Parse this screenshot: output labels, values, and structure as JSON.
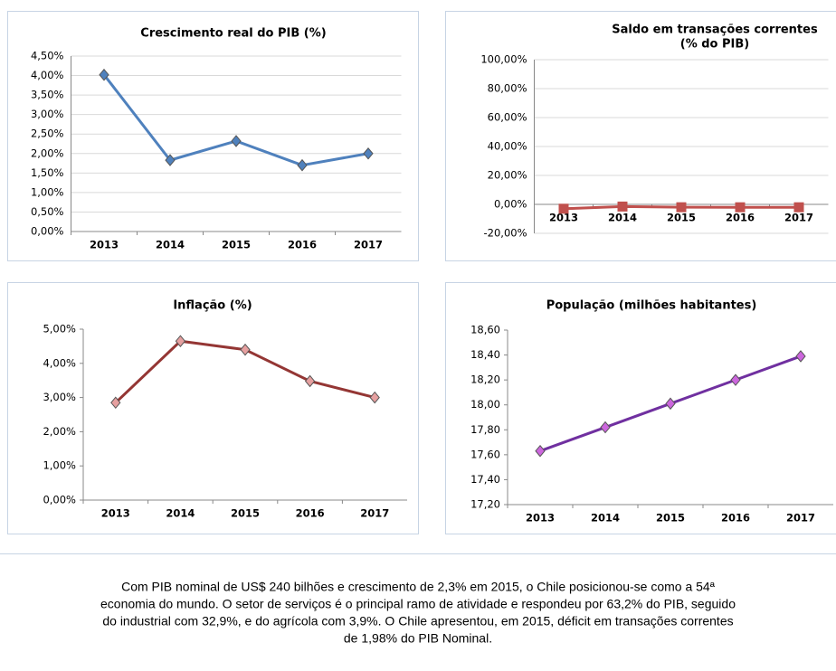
{
  "chart_data": [
    {
      "type": "line",
      "title": [
        "Crescimento real do PIB (%)"
      ],
      "categories": [
        "2013",
        "2014",
        "2015",
        "2016",
        "2017"
      ],
      "series": [
        {
          "color": "#4f81bd",
          "marker": "diamond",
          "marker_color": "#4f81bd",
          "values": [
            4.02,
            1.83,
            2.32,
            1.7,
            2.0
          ]
        }
      ],
      "ylim": [
        0,
        4.5
      ],
      "yticks": [
        {
          "value": 0,
          "label": "0,00%"
        },
        {
          "value": 0.5,
          "label": "0,50%"
        },
        {
          "value": 1,
          "label": "1,00%"
        },
        {
          "value": 1.5,
          "label": "1,50%"
        },
        {
          "value": 2,
          "label": "2,00%"
        },
        {
          "value": 2.5,
          "label": "2,50%"
        },
        {
          "value": 3,
          "label": "3,00%"
        },
        {
          "value": 3.5,
          "label": "3,50%"
        },
        {
          "value": 4,
          "label": "4,00%"
        },
        {
          "value": 4.5,
          "label": "4,50%"
        }
      ],
      "grid": true
    },
    {
      "type": "line",
      "title": [
        "Saldo em transações correntes",
        "(% do PIB)"
      ],
      "categories": [
        "2013",
        "2014",
        "2015",
        "2016",
        "2017"
      ],
      "series": [
        {
          "color": "#c0504d",
          "marker": "square",
          "marker_color": "#c0504d",
          "values": [
            -3.0,
            -1.5,
            -1.98,
            -2.0,
            -2.0
          ]
        }
      ],
      "ylim": [
        -20,
        100
      ],
      "yticks": [
        {
          "value": -20,
          "label": "-20,00%"
        },
        {
          "value": 0,
          "label": "0,00%"
        },
        {
          "value": 20,
          "label": "20,00%"
        },
        {
          "value": 40,
          "label": "40,00%"
        },
        {
          "value": 60,
          "label": "60,00%"
        },
        {
          "value": 80,
          "label": "80,00%"
        },
        {
          "value": 100,
          "label": "100,00%"
        }
      ],
      "grid": true
    },
    {
      "type": "line",
      "title": [
        "Inflação (%)"
      ],
      "categories": [
        "2013",
        "2014",
        "2015",
        "2016",
        "2017"
      ],
      "series": [
        {
          "color": "#943634",
          "marker": "diamond",
          "marker_color": "#e6a0a0",
          "values": [
            2.85,
            4.65,
            4.4,
            3.48,
            3.0
          ]
        }
      ],
      "ylim": [
        0,
        5
      ],
      "yticks": [
        {
          "value": 0,
          "label": "0,00%"
        },
        {
          "value": 1,
          "label": "1,00%"
        },
        {
          "value": 2,
          "label": "2,00%"
        },
        {
          "value": 3,
          "label": "3,00%"
        },
        {
          "value": 4,
          "label": "4,00%"
        },
        {
          "value": 5,
          "label": "5,00%"
        }
      ],
      "grid": false
    },
    {
      "type": "line",
      "title": [
        "População (milhões habitantes)"
      ],
      "categories": [
        "2013",
        "2014",
        "2015",
        "2016",
        "2017"
      ],
      "series": [
        {
          "color": "#7030a0",
          "marker": "diamond",
          "marker_color": "#cc66dd",
          "values": [
            17.63,
            17.82,
            18.01,
            18.2,
            18.39
          ]
        }
      ],
      "ylim": [
        17.2,
        18.6
      ],
      "yticks": [
        {
          "value": 17.2,
          "label": "17,20"
        },
        {
          "value": 17.4,
          "label": "17,40"
        },
        {
          "value": 17.6,
          "label": "17,60"
        },
        {
          "value": 17.8,
          "label": "17,80"
        },
        {
          "value": 18.0,
          "label": "18,00"
        },
        {
          "value": 18.2,
          "label": "18,20"
        },
        {
          "value": 18.4,
          "label": "18,40"
        },
        {
          "value": 18.6,
          "label": "18,60"
        }
      ],
      "grid": false
    }
  ],
  "text": {
    "lines": [
      "Com PIB nominal de US$ 240 bilhões  e crescimento de 2,3% em 2015, o Chile posicionou-se como a 54ª",
      "economia do mundo. O setor de serviços é o principal ramo de atividade e respondeu por 63,2% do PIB, seguido",
      "do industrial com 32,9%, e do agrícola com 3,9%. O Chile apresentou, em 2015, déficit em transações correntes",
      "de 1,98% do PIB Nominal."
    ]
  }
}
